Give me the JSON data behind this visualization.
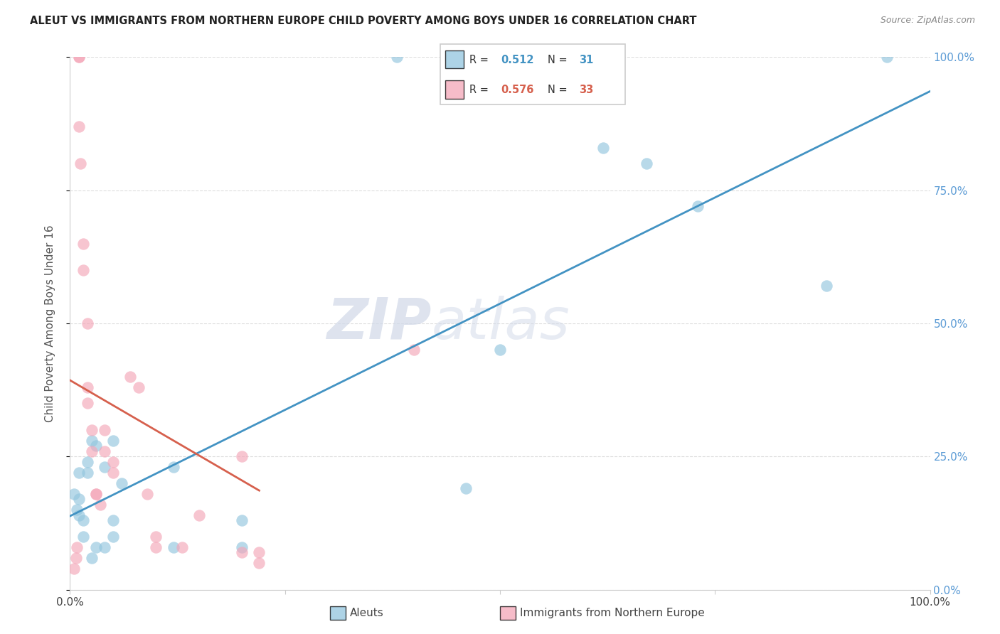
{
  "title": "ALEUT VS IMMIGRANTS FROM NORTHERN EUROPE CHILD POVERTY AMONG BOYS UNDER 16 CORRELATION CHART",
  "source": "Source: ZipAtlas.com",
  "ylabel": "Child Poverty Among Boys Under 16",
  "xlim": [
    0,
    1
  ],
  "ylim": [
    0,
    1
  ],
  "xtick_labels": [
    "0.0%",
    "100.0%"
  ],
  "ytick_labels": [
    "0.0%",
    "25.0%",
    "50.0%",
    "75.0%",
    "100.0%"
  ],
  "ytick_positions": [
    0.0,
    0.25,
    0.5,
    0.75,
    1.0
  ],
  "watermark_part1": "ZIP",
  "watermark_part2": "atlas",
  "legend_r1": "0.512",
  "legend_n1": "31",
  "legend_r2": "0.576",
  "legend_n2": "33",
  "legend_label1": "Aleuts",
  "legend_label2": "Immigrants from Northern Europe",
  "blue_color": "#92c5de",
  "pink_color": "#f4a6b8",
  "blue_line_color": "#4393c3",
  "pink_line_color": "#d6604d",
  "title_color": "#222222",
  "source_color": "#888888",
  "axis_label_color": "#555555",
  "tick_color_right": "#5b9bd5",
  "grid_color": "#dddddd",
  "aleuts_x": [
    0.005,
    0.008,
    0.01,
    0.01,
    0.01,
    0.015,
    0.015,
    0.02,
    0.02,
    0.025,
    0.025,
    0.03,
    0.03,
    0.04,
    0.04,
    0.05,
    0.05,
    0.05,
    0.06,
    0.12,
    0.12,
    0.2,
    0.2,
    0.38,
    0.46,
    0.5,
    0.62,
    0.67,
    0.73,
    0.88,
    0.95
  ],
  "aleuts_y": [
    0.18,
    0.15,
    0.22,
    0.17,
    0.14,
    0.13,
    0.1,
    0.22,
    0.24,
    0.28,
    0.06,
    0.27,
    0.08,
    0.23,
    0.08,
    0.13,
    0.1,
    0.28,
    0.2,
    0.23,
    0.08,
    0.08,
    0.13,
    1.0,
    0.19,
    0.45,
    0.83,
    0.8,
    0.72,
    0.57,
    1.0
  ],
  "immigrants_x": [
    0.005,
    0.007,
    0.008,
    0.01,
    0.01,
    0.01,
    0.012,
    0.015,
    0.015,
    0.02,
    0.02,
    0.02,
    0.025,
    0.025,
    0.03,
    0.03,
    0.035,
    0.04,
    0.04,
    0.05,
    0.05,
    0.07,
    0.08,
    0.09,
    0.1,
    0.1,
    0.13,
    0.2,
    0.2,
    0.22,
    0.22,
    0.4,
    0.15
  ],
  "immigrants_y": [
    0.04,
    0.06,
    0.08,
    1.0,
    1.0,
    0.87,
    0.8,
    0.6,
    0.65,
    0.5,
    0.38,
    0.35,
    0.3,
    0.26,
    0.18,
    0.18,
    0.16,
    0.3,
    0.26,
    0.24,
    0.22,
    0.4,
    0.38,
    0.18,
    0.1,
    0.08,
    0.08,
    0.25,
    0.07,
    0.07,
    0.05,
    0.45,
    0.14
  ]
}
